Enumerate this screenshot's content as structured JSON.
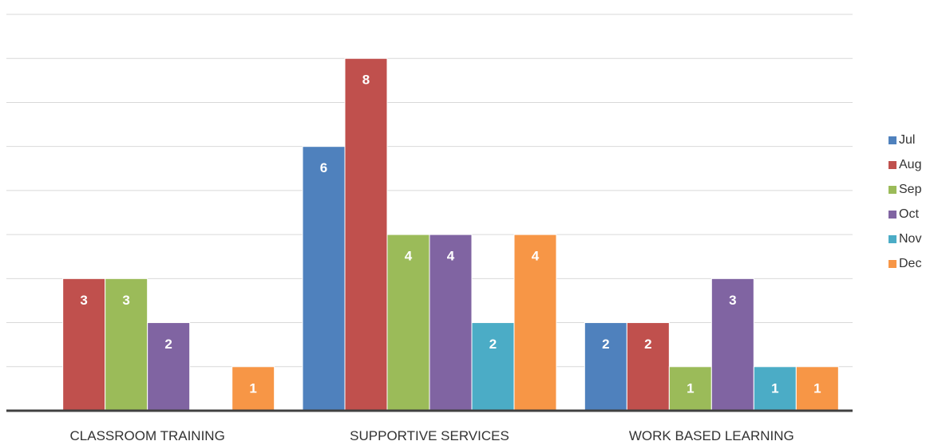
{
  "chart_data": {
    "type": "bar",
    "categories": [
      "CLASSROOM TRAINING",
      "SUPPORTIVE SERVICES",
      "WORK BASED LEARNING"
    ],
    "series": [
      {
        "name": "Jul",
        "color": "#4f81bd",
        "values": [
          0,
          6,
          2
        ]
      },
      {
        "name": "Aug",
        "color": "#c0504d",
        "values": [
          3,
          8,
          2
        ]
      },
      {
        "name": "Sep",
        "color": "#9bbb59",
        "values": [
          3,
          4,
          1
        ]
      },
      {
        "name": "Oct",
        "color": "#8064a2",
        "values": [
          2,
          4,
          3
        ]
      },
      {
        "name": "Nov",
        "color": "#4bacc6",
        "values": [
          0,
          2,
          1
        ]
      },
      {
        "name": "Dec",
        "color": "#f79646",
        "values": [
          1,
          4,
          1
        ]
      }
    ],
    "ylim": [
      0,
      9
    ],
    "grid": true,
    "legend_position": "right",
    "data_labels": true,
    "title": "",
    "xlabel": "",
    "ylabel": ""
  }
}
